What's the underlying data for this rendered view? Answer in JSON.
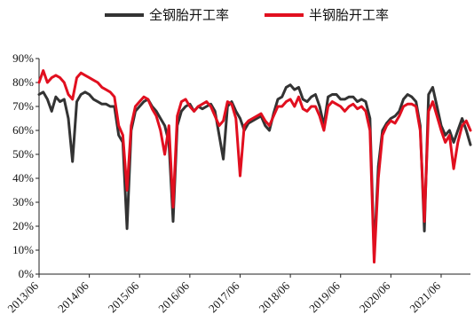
{
  "chart_data": {
    "type": "line",
    "title": "",
    "xlabel": "",
    "ylabel": "",
    "ylim": [
      0,
      90
    ],
    "xlim": [
      "2013/06",
      "2022/01"
    ],
    "y_ticks": [
      "0%",
      "10%",
      "20%",
      "30%",
      "40%",
      "50%",
      "60%",
      "70%",
      "80%",
      "90%"
    ],
    "x_ticks": [
      "2013/06",
      "2014/06",
      "2015/06",
      "2016/06",
      "2017/06",
      "2018/06",
      "2019/06",
      "2020/06",
      "2021/06"
    ],
    "grid": false,
    "legend_position": "top",
    "series": [
      {
        "name": "全钢胎开工率",
        "color": "#333333",
        "points": [
          [
            "2013/06",
            75
          ],
          [
            "2013/07",
            76
          ],
          [
            "2013/08",
            73
          ],
          [
            "2013/09",
            68
          ],
          [
            "2013/10",
            74
          ],
          [
            "2013/11",
            72
          ],
          [
            "2013/12",
            73
          ],
          [
            "2014/01",
            65
          ],
          [
            "2014/02",
            47
          ],
          [
            "2014/03",
            72
          ],
          [
            "2014/04",
            75
          ],
          [
            "2014/05",
            76
          ],
          [
            "2014/06",
            75
          ],
          [
            "2014/07",
            73
          ],
          [
            "2014/08",
            72
          ],
          [
            "2014/09",
            71
          ],
          [
            "2014/10",
            71
          ],
          [
            "2014/11",
            70
          ],
          [
            "2014/12",
            70
          ],
          [
            "2015/01",
            58
          ],
          [
            "2015/02",
            55
          ],
          [
            "2015/03",
            19
          ],
          [
            "2015/04",
            60
          ],
          [
            "2015/05",
            68
          ],
          [
            "2015/06",
            70
          ],
          [
            "2015/07",
            72
          ],
          [
            "2015/08",
            73
          ],
          [
            "2015/09",
            70
          ],
          [
            "2015/10",
            68
          ],
          [
            "2015/11",
            65
          ],
          [
            "2015/12",
            62
          ],
          [
            "2016/01",
            55
          ],
          [
            "2016/02",
            22
          ],
          [
            "2016/03",
            62
          ],
          [
            "2016/04",
            68
          ],
          [
            "2016/05",
            70
          ],
          [
            "2016/06",
            71
          ],
          [
            "2016/07",
            68
          ],
          [
            "2016/08",
            70
          ],
          [
            "2016/09",
            69
          ],
          [
            "2016/10",
            70
          ],
          [
            "2016/11",
            71
          ],
          [
            "2016/12",
            68
          ],
          [
            "2017/01",
            58
          ],
          [
            "2017/02",
            48
          ],
          [
            "2017/03",
            70
          ],
          [
            "2017/04",
            72
          ],
          [
            "2017/05",
            68
          ],
          [
            "2017/06",
            65
          ],
          [
            "2017/07",
            60
          ],
          [
            "2017/08",
            63
          ],
          [
            "2017/09",
            64
          ],
          [
            "2017/10",
            65
          ],
          [
            "2017/11",
            66
          ],
          [
            "2017/12",
            62
          ],
          [
            "2018/01",
            60
          ],
          [
            "2018/02",
            67
          ],
          [
            "2018/03",
            73
          ],
          [
            "2018/04",
            74
          ],
          [
            "2018/05",
            78
          ],
          [
            "2018/06",
            79
          ],
          [
            "2018/07",
            77
          ],
          [
            "2018/08",
            78
          ],
          [
            "2018/09",
            73
          ],
          [
            "2018/10",
            72
          ],
          [
            "2018/11",
            74
          ],
          [
            "2018/12",
            75
          ],
          [
            "2019/01",
            70
          ],
          [
            "2019/02",
            62
          ],
          [
            "2019/03",
            74
          ],
          [
            "2019/04",
            75
          ],
          [
            "2019/05",
            75
          ],
          [
            "2019/06",
            73
          ],
          [
            "2019/07",
            73
          ],
          [
            "2019/08",
            74
          ],
          [
            "2019/09",
            74
          ],
          [
            "2019/10",
            72
          ],
          [
            "2019/11",
            73
          ],
          [
            "2019/12",
            72
          ],
          [
            "2020/01",
            65
          ],
          [
            "2020/02",
            8
          ],
          [
            "2020/03",
            45
          ],
          [
            "2020/04",
            60
          ],
          [
            "2020/05",
            63
          ],
          [
            "2020/06",
            65
          ],
          [
            "2020/07",
            66
          ],
          [
            "2020/08",
            68
          ],
          [
            "2020/09",
            73
          ],
          [
            "2020/10",
            75
          ],
          [
            "2020/11",
            74
          ],
          [
            "2020/12",
            72
          ],
          [
            "2021/01",
            62
          ],
          [
            "2021/02",
            18
          ],
          [
            "2021/03",
            75
          ],
          [
            "2021/04",
            78
          ],
          [
            "2021/05",
            70
          ],
          [
            "2021/06",
            62
          ],
          [
            "2021/07",
            58
          ],
          [
            "2021/08",
            60
          ],
          [
            "2021/09",
            55
          ],
          [
            "2021/10",
            60
          ],
          [
            "2021/11",
            65
          ],
          [
            "2021/12",
            60
          ],
          [
            "2022/01",
            54
          ]
        ]
      },
      {
        "name": "半钢胎开工率",
        "color": "#e10f1f",
        "points": [
          [
            "2013/06",
            80
          ],
          [
            "2013/07",
            85
          ],
          [
            "2013/08",
            80
          ],
          [
            "2013/09",
            82
          ],
          [
            "2013/10",
            83
          ],
          [
            "2013/11",
            82
          ],
          [
            "2013/12",
            80
          ],
          [
            "2014/01",
            75
          ],
          [
            "2014/02",
            73
          ],
          [
            "2014/03",
            82
          ],
          [
            "2014/04",
            84
          ],
          [
            "2014/05",
            83
          ],
          [
            "2014/06",
            82
          ],
          [
            "2014/07",
            81
          ],
          [
            "2014/08",
            80
          ],
          [
            "2014/09",
            78
          ],
          [
            "2014/10",
            77
          ],
          [
            "2014/11",
            76
          ],
          [
            "2014/12",
            74
          ],
          [
            "2015/01",
            62
          ],
          [
            "2015/02",
            58
          ],
          [
            "2015/03",
            35
          ],
          [
            "2015/04",
            62
          ],
          [
            "2015/05",
            70
          ],
          [
            "2015/06",
            72
          ],
          [
            "2015/07",
            74
          ],
          [
            "2015/08",
            73
          ],
          [
            "2015/09",
            69
          ],
          [
            "2015/10",
            66
          ],
          [
            "2015/11",
            60
          ],
          [
            "2015/12",
            50
          ],
          [
            "2016/01",
            62
          ],
          [
            "2016/02",
            28
          ],
          [
            "2016/03",
            66
          ],
          [
            "2016/04",
            72
          ],
          [
            "2016/05",
            73
          ],
          [
            "2016/06",
            70
          ],
          [
            "2016/07",
            68
          ],
          [
            "2016/08",
            70
          ],
          [
            "2016/09",
            71
          ],
          [
            "2016/10",
            72
          ],
          [
            "2016/11",
            70
          ],
          [
            "2016/12",
            66
          ],
          [
            "2017/01",
            62
          ],
          [
            "2017/02",
            64
          ],
          [
            "2017/03",
            72
          ],
          [
            "2017/04",
            71
          ],
          [
            "2017/05",
            65
          ],
          [
            "2017/06",
            41
          ],
          [
            "2017/07",
            62
          ],
          [
            "2017/08",
            64
          ],
          [
            "2017/09",
            65
          ],
          [
            "2017/10",
            66
          ],
          [
            "2017/11",
            67
          ],
          [
            "2017/12",
            64
          ],
          [
            "2018/01",
            62
          ],
          [
            "2018/02",
            66
          ],
          [
            "2018/03",
            70
          ],
          [
            "2018/04",
            70
          ],
          [
            "2018/05",
            72
          ],
          [
            "2018/06",
            73
          ],
          [
            "2018/07",
            70
          ],
          [
            "2018/08",
            74
          ],
          [
            "2018/09",
            69
          ],
          [
            "2018/10",
            68
          ],
          [
            "2018/11",
            70
          ],
          [
            "2018/12",
            70
          ],
          [
            "2019/01",
            66
          ],
          [
            "2019/02",
            60
          ],
          [
            "2019/03",
            70
          ],
          [
            "2019/04",
            72
          ],
          [
            "2019/05",
            71
          ],
          [
            "2019/06",
            70
          ],
          [
            "2019/07",
            68
          ],
          [
            "2019/08",
            70
          ],
          [
            "2019/09",
            71
          ],
          [
            "2019/10",
            69
          ],
          [
            "2019/11",
            70
          ],
          [
            "2019/12",
            68
          ],
          [
            "2020/01",
            60
          ],
          [
            "2020/02",
            5
          ],
          [
            "2020/03",
            40
          ],
          [
            "2020/04",
            58
          ],
          [
            "2020/05",
            62
          ],
          [
            "2020/06",
            64
          ],
          [
            "2020/07",
            63
          ],
          [
            "2020/08",
            66
          ],
          [
            "2020/09",
            70
          ],
          [
            "2020/10",
            71
          ],
          [
            "2020/11",
            71
          ],
          [
            "2020/12",
            70
          ],
          [
            "2021/01",
            60
          ],
          [
            "2021/02",
            22
          ],
          [
            "2021/03",
            68
          ],
          [
            "2021/04",
            72
          ],
          [
            "2021/05",
            66
          ],
          [
            "2021/06",
            60
          ],
          [
            "2021/07",
            55
          ],
          [
            "2021/08",
            58
          ],
          [
            "2021/09",
            44
          ],
          [
            "2021/10",
            55
          ],
          [
            "2021/11",
            62
          ],
          [
            "2021/12",
            64
          ],
          [
            "2022/01",
            60
          ]
        ]
      }
    ]
  }
}
